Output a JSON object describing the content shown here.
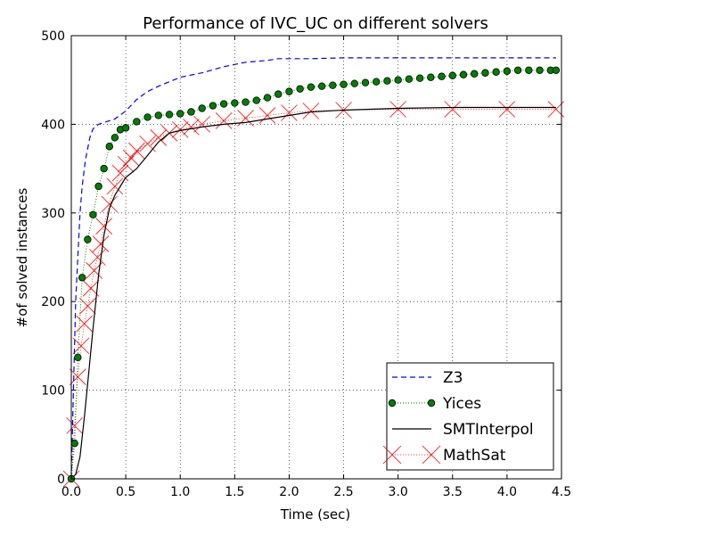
{
  "chart_data": {
    "type": "line",
    "title": "Performance of IVC_UC on different solvers",
    "xlabel": "Time (sec)",
    "ylabel": "#of solved instances",
    "xlim": [
      0.0,
      4.5
    ],
    "ylim": [
      0,
      500
    ],
    "xticks": [
      "0.0",
      "0.5",
      "1.0",
      "1.5",
      "2.0",
      "2.5",
      "3.0",
      "3.5",
      "4.0",
      "4.5"
    ],
    "yticks": [
      "0",
      "100",
      "200",
      "300",
      "400",
      "500"
    ],
    "grid": true,
    "legend_position": "lower-right",
    "series": [
      {
        "name": "Z3",
        "color": "#0000ff",
        "style": "dashed",
        "x": [
          0.0,
          0.02,
          0.04,
          0.06,
          0.08,
          0.1,
          0.13,
          0.17,
          0.2,
          0.25,
          0.3,
          0.4,
          0.5,
          0.6,
          0.7,
          0.8,
          0.9,
          1.0,
          1.2,
          1.4,
          1.6,
          1.8,
          1.9,
          2.2,
          2.5,
          3.0,
          3.5,
          4.0,
          4.45
        ],
        "y": [
          0,
          100,
          200,
          250,
          300,
          330,
          360,
          385,
          395,
          400,
          402,
          406,
          415,
          428,
          437,
          443,
          448,
          453,
          458,
          465,
          470,
          472,
          474,
          474,
          475,
          475,
          475,
          475,
          475
        ]
      },
      {
        "name": "Yices",
        "color": "#007f00",
        "style": "dotted-circle",
        "x": [
          0.0,
          0.03,
          0.06,
          0.1,
          0.15,
          0.2,
          0.25,
          0.3,
          0.35,
          0.4,
          0.45,
          0.5,
          0.6,
          0.7,
          0.8,
          0.9,
          1.0,
          1.1,
          1.2,
          1.3,
          1.4,
          1.5,
          1.6,
          1.7,
          1.8,
          1.9,
          2.0,
          2.1,
          2.2,
          2.3,
          2.4,
          2.5,
          2.6,
          2.7,
          2.8,
          2.9,
          3.0,
          3.1,
          3.2,
          3.3,
          3.4,
          3.5,
          3.6,
          3.7,
          3.8,
          3.9,
          4.0,
          4.1,
          4.2,
          4.3,
          4.4,
          4.45
        ],
        "y": [
          0,
          40,
          137,
          227,
          270,
          298,
          330,
          350,
          375,
          385,
          394,
          396,
          403,
          408,
          410,
          411,
          412,
          414,
          418,
          421,
          423,
          424,
          425,
          427,
          430,
          434,
          437,
          440,
          442,
          443,
          444,
          445,
          446,
          447,
          448,
          449,
          450,
          451,
          452,
          453,
          454,
          455,
          456,
          457,
          458,
          459,
          460,
          461,
          461,
          461,
          461,
          461
        ]
      },
      {
        "name": "SMTInterpol",
        "color": "#000000",
        "style": "solid",
        "x": [
          0.0,
          0.04,
          0.08,
          0.12,
          0.16,
          0.2,
          0.25,
          0.3,
          0.35,
          0.4,
          0.45,
          0.5,
          0.55,
          0.6,
          0.7,
          0.8,
          0.9,
          1.0,
          1.1,
          1.2,
          1.4,
          1.6,
          1.8,
          2.0,
          2.2,
          2.5,
          3.0,
          3.5,
          4.0,
          4.45
        ],
        "y": [
          0,
          5,
          25,
          70,
          120,
          170,
          230,
          275,
          305,
          320,
          330,
          340,
          345,
          350,
          365,
          380,
          390,
          393,
          395,
          397,
          400,
          402,
          406,
          410,
          414,
          416,
          418,
          419,
          419,
          419
        ]
      },
      {
        "name": "MathSat",
        "color": "#ff0000",
        "style": "x-marker",
        "x": [
          0.0,
          0.03,
          0.06,
          0.09,
          0.12,
          0.15,
          0.18,
          0.21,
          0.24,
          0.27,
          0.3,
          0.35,
          0.4,
          0.45,
          0.5,
          0.55,
          0.6,
          0.7,
          0.8,
          0.9,
          1.0,
          1.1,
          1.2,
          1.4,
          1.6,
          1.8,
          2.0,
          2.2,
          2.5,
          3.0,
          3.5,
          4.0,
          4.45
        ],
        "y": [
          0,
          60,
          115,
          150,
          175,
          195,
          215,
          235,
          250,
          265,
          285,
          310,
          330,
          345,
          355,
          362,
          370,
          378,
          385,
          390,
          394,
          397,
          400,
          404,
          407,
          410,
          413,
          415,
          416,
          417,
          417,
          417,
          417
        ]
      }
    ]
  }
}
